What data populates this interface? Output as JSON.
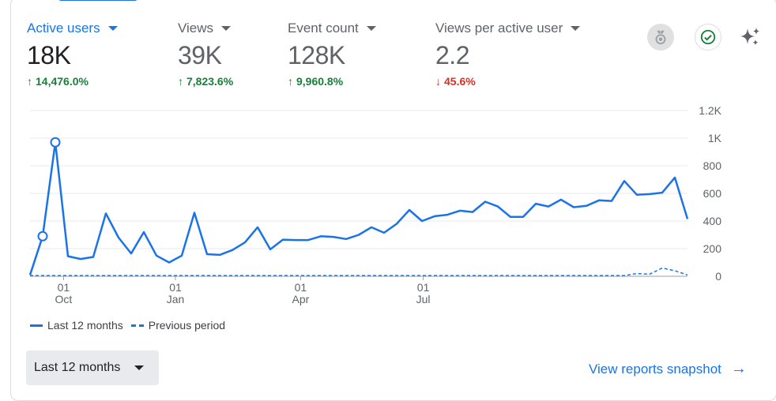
{
  "metrics": [
    {
      "label": "Active users",
      "value": "18K",
      "change": "14,476.0%",
      "direction": "up",
      "active": true
    },
    {
      "label": "Views",
      "value": "39K",
      "change": "7,823.6%",
      "direction": "up",
      "active": false
    },
    {
      "label": "Event count",
      "value": "128K",
      "change": "9,960.8%",
      "direction": "up",
      "active": false
    },
    {
      "label": "Views per active user",
      "value": "2.2",
      "change": "45.6%",
      "direction": "down",
      "active": false
    }
  ],
  "icons": {
    "insights": "medal-icon",
    "check": "check-circle-icon",
    "ai": "sparkle-icon"
  },
  "colors": {
    "accent": "#1a73e8",
    "up": "#188038",
    "down": "#d93025"
  },
  "chart_data": {
    "type": "line",
    "x_tick_labels": [
      {
        "day": "01",
        "month": "Oct"
      },
      {
        "day": "01",
        "month": "Jan"
      },
      {
        "day": "01",
        "month": "Apr"
      },
      {
        "day": "01",
        "month": "Jul"
      }
    ],
    "y_ticks": [
      "0",
      "200",
      "400",
      "600",
      "800",
      "1K",
      "1.2K"
    ],
    "ylim": [
      0,
      1200
    ],
    "grid": true,
    "legend_position": "bottom-left",
    "series": [
      {
        "name": "Last 12 months",
        "style": "solid",
        "values": [
          10,
          290,
          970,
          145,
          125,
          140,
          455,
          280,
          165,
          320,
          150,
          100,
          150,
          460,
          160,
          155,
          190,
          245,
          355,
          195,
          265,
          262,
          262,
          290,
          285,
          270,
          300,
          355,
          315,
          380,
          480,
          400,
          435,
          445,
          475,
          465,
          540,
          505,
          430,
          430,
          525,
          505,
          555,
          500,
          510,
          550,
          545,
          690,
          590,
          595,
          605,
          715,
          415
        ]
      },
      {
        "name": "Previous period",
        "style": "dashed",
        "values": [
          5,
          5,
          5,
          5,
          5,
          5,
          5,
          5,
          5,
          5,
          5,
          5,
          5,
          5,
          5,
          5,
          5,
          5,
          5,
          5,
          5,
          5,
          5,
          5,
          5,
          5,
          5,
          5,
          5,
          5,
          5,
          5,
          5,
          5,
          5,
          5,
          5,
          5,
          5,
          5,
          5,
          5,
          5,
          5,
          5,
          5,
          5,
          5,
          20,
          15,
          60,
          40,
          10
        ]
      }
    ],
    "highlight_points": [
      1,
      2
    ]
  },
  "legend": {
    "current": "Last 12 months",
    "previous": "Previous period"
  },
  "range_button": {
    "label": "Last 12 months"
  },
  "snapshot_link": {
    "label": "View reports snapshot"
  }
}
